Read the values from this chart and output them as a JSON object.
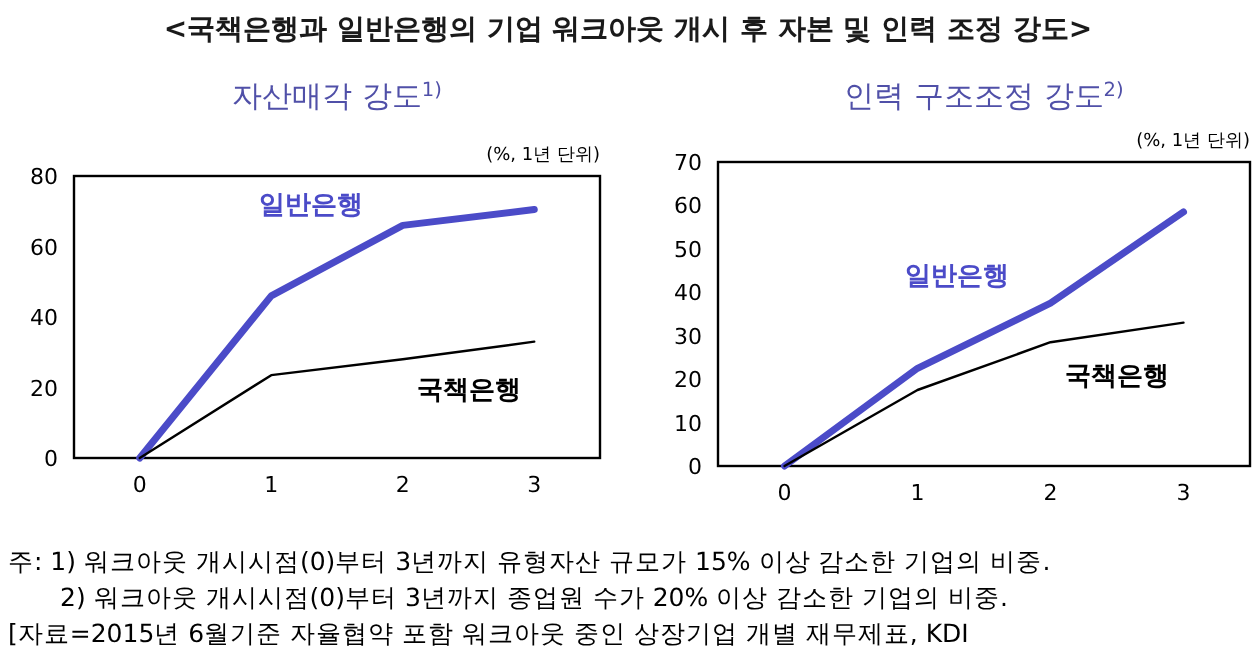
{
  "chart_data": [
    {
      "type": "other",
      "title": "<국책은행과 일반은행의 기업 워크아웃 개시 후 자본 및 인력 조정 강도>",
      "annotations": [
        "주: 1) 워크아웃 개시시점(0)부터 3년까지 유형자산 규모가 15% 이상 감소한 기업의 비중.",
        "2) 워크아웃 개시시점(0)부터 3년까지 종업원 수가 20% 이상 감소한 기업의 비중.",
        "[자료=2015년 6월기준 자율협약 포함 워크아웃 중인 상장기업 개별 재무제표, KDI"
      ]
    },
    {
      "type": "line",
      "title": "자산매각 강도$^{1)}$",
      "ylabel": "(%, 1년 단위)",
      "x": [
        0,
        1,
        2,
        3
      ],
      "xlim": [
        -0.5,
        3.5
      ],
      "xticks": [
        0,
        1,
        2,
        3
      ],
      "ylim": [
        0,
        80
      ],
      "yticks": [
        0,
        20,
        40,
        60,
        80
      ],
      "grid": false,
      "series": [
        {
          "name": "일반은행",
          "color": "#4b4bc8",
          "values": [
            0,
            46,
            66,
            70.5
          ]
        },
        {
          "name": "국책은행",
          "color": "#000000",
          "values": [
            0,
            23.5,
            28,
            33
          ]
        }
      ]
    },
    {
      "type": "line",
      "title": "인력 구조조정 강도$^{2)}$",
      "ylabel": "(%, 1년 단위)",
      "x": [
        0,
        1,
        2,
        3
      ],
      "xlim": [
        -0.5,
        3.5
      ],
      "xticks": [
        0,
        1,
        2,
        3
      ],
      "ylim": [
        0,
        70
      ],
      "yticks": [
        0,
        10,
        20,
        30,
        40,
        50,
        60,
        70
      ],
      "grid": false,
      "series": [
        {
          "name": "일반은행",
          "color": "#4b4bc8",
          "values": [
            0,
            22.5,
            37.5,
            58.5
          ]
        },
        {
          "name": "국책은행",
          "color": "#000000",
          "values": [
            0,
            17.5,
            28.5,
            33
          ]
        }
      ]
    }
  ]
}
